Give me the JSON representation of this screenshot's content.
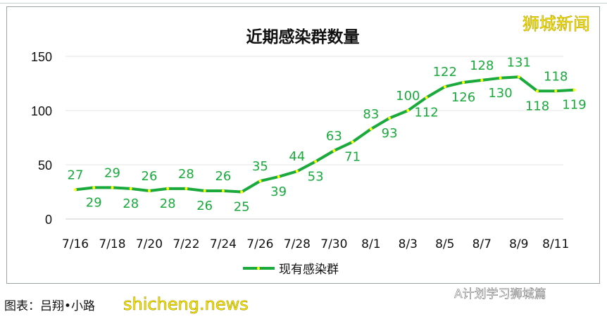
{
  "watermark": "狮城新闻",
  "caption": "图表：吕翔•小路",
  "site_watermark": "shicheng.news",
  "wechat_source": "A计划学习狮城篇",
  "chart_data": {
    "type": "line",
    "title": "近期感染群数量",
    "xlabel": "",
    "ylabel": "",
    "x": [
      "7/16",
      "7/17",
      "7/18",
      "7/19",
      "7/20",
      "7/21",
      "7/22",
      "7/23",
      "7/24",
      "7/25",
      "7/26",
      "7/27",
      "7/28",
      "7/29",
      "7/30",
      "7/31",
      "8/1",
      "8/2",
      "8/3",
      "8/4",
      "8/5",
      "8/6",
      "8/7",
      "8/8",
      "8/9",
      "8/10",
      "8/11",
      "8/12"
    ],
    "x_tick_labels": [
      "7/16",
      "7/18",
      "7/20",
      "7/22",
      "7/24",
      "7/26",
      "7/28",
      "7/30",
      "8/1",
      "8/3",
      "8/5",
      "8/7",
      "8/9",
      "8/11"
    ],
    "y_ticks": [
      0,
      50,
      100,
      150
    ],
    "ylim": [
      0,
      150
    ],
    "grid": true,
    "legend": "bottom",
    "series": [
      {
        "name": "现有感染群",
        "color": "#1aaa3c",
        "marker_color": "#ffff00",
        "values": [
          27,
          29,
          29,
          28,
          26,
          28,
          28,
          26,
          26,
          25,
          35,
          39,
          44,
          53,
          63,
          71,
          83,
          93,
          100,
          112,
          122,
          126,
          128,
          130,
          131,
          118,
          118,
          119
        ]
      }
    ]
  }
}
